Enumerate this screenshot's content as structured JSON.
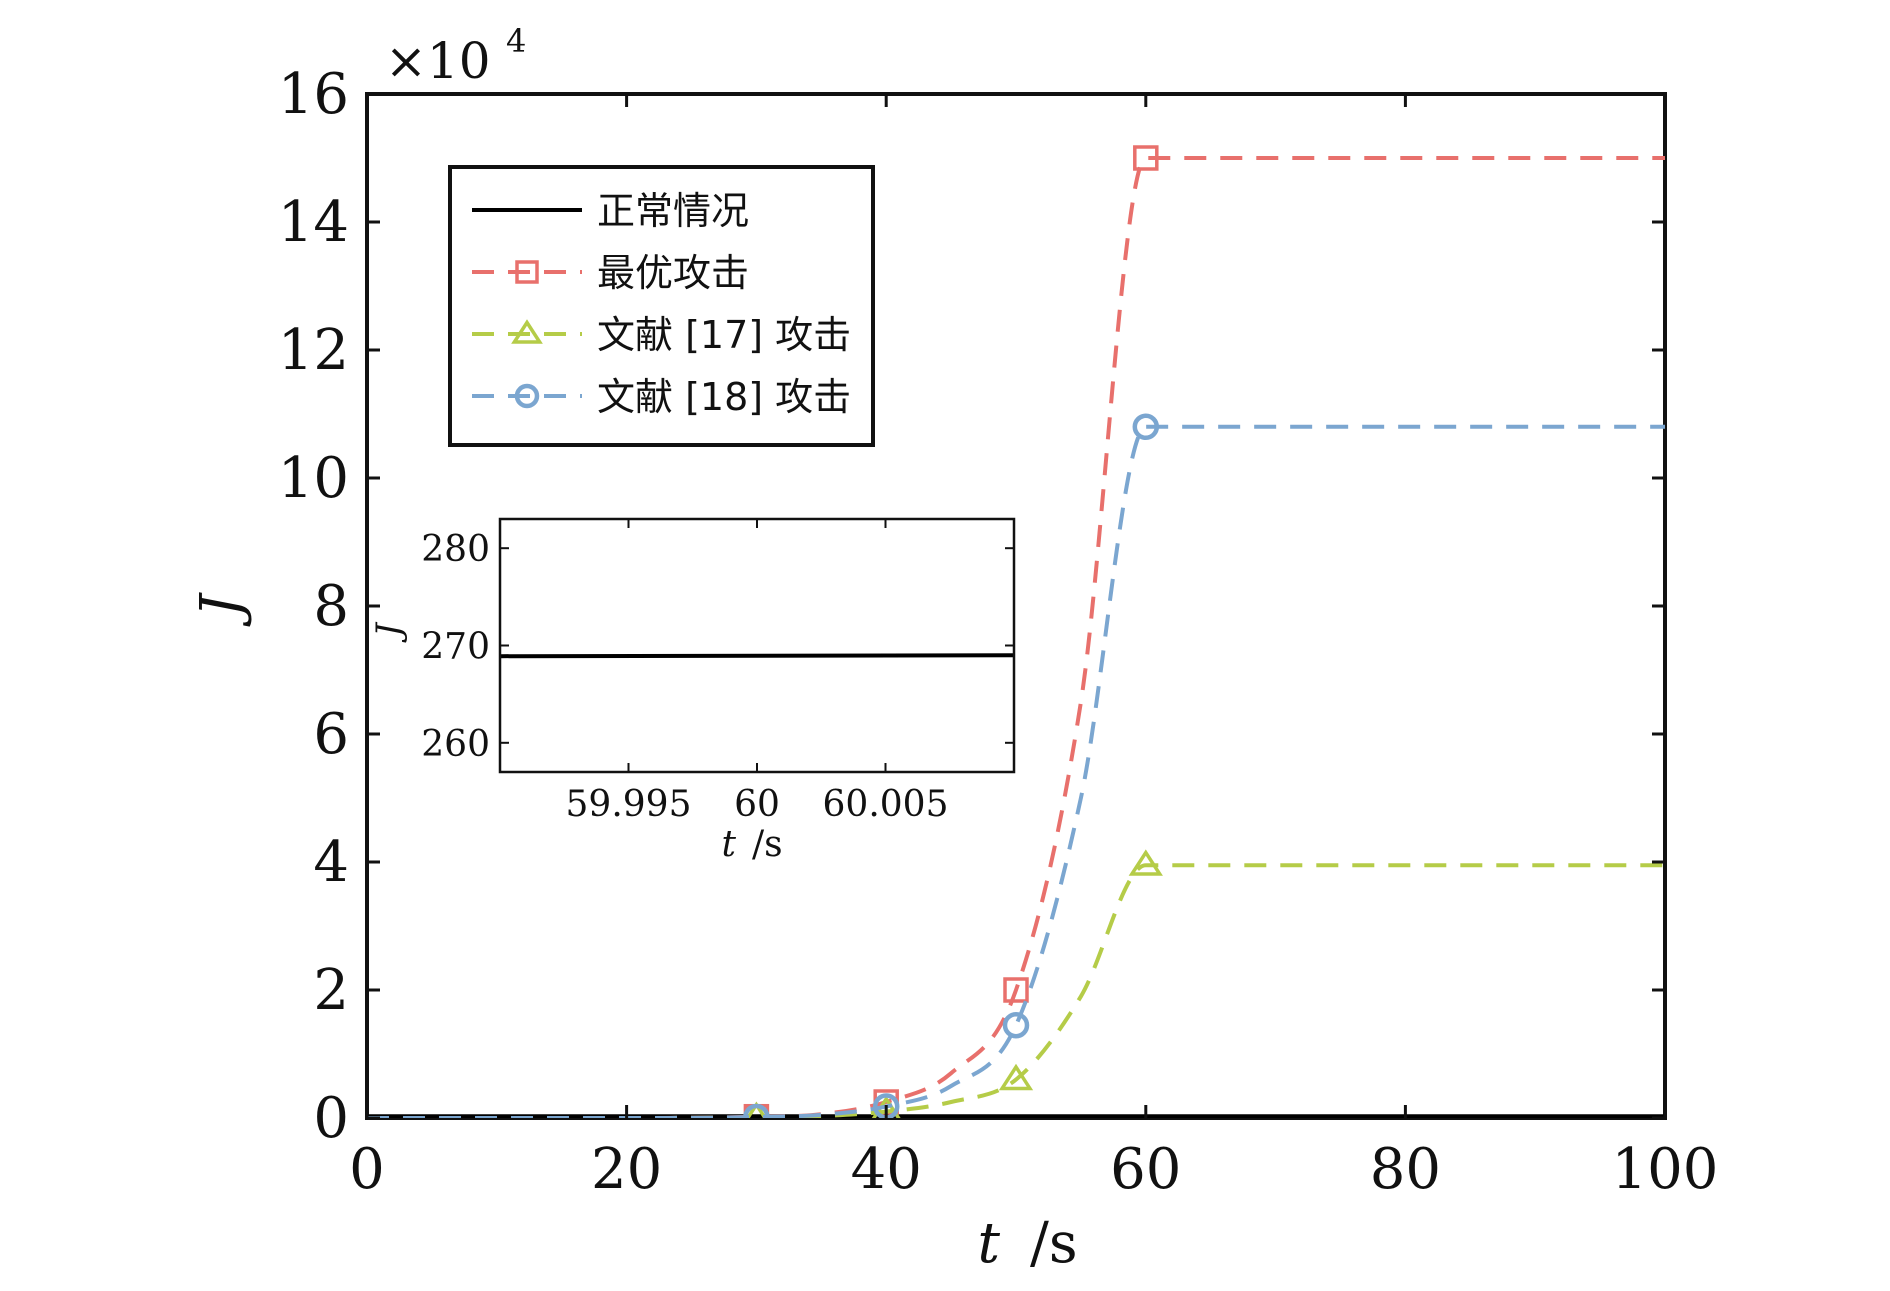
{
  "chart_data": [
    {
      "type": "line",
      "x_label": "t",
      "x_unit": "/s",
      "y_label": "J",
      "y_multiplier": "×10",
      "y_multiplier_exponent": "4",
      "xlim": [
        0,
        100
      ],
      "ylim": [
        0,
        16
      ],
      "x_ticks": [
        0,
        20,
        40,
        60,
        80,
        100
      ],
      "y_ticks": [
        0,
        2,
        4,
        6,
        8,
        10,
        12,
        14,
        16
      ],
      "grid": false,
      "legend_position": "top-left",
      "series": [
        {
          "name": "正常情况",
          "color": "#000000",
          "dash": "solid",
          "marker": "none",
          "x": [
            0,
            100
          ],
          "y": [
            0.0269,
            0.0269
          ]
        },
        {
          "name": "最优攻击",
          "color": "#e8706c",
          "dash": "dashed",
          "marker": "square",
          "x": [
            0,
            10,
            20,
            30,
            35,
            40,
            45,
            50,
            55,
            60,
            70,
            80,
            90,
            100
          ],
          "y": [
            0,
            0,
            0,
            0.02,
            0.06,
            0.25,
            0.7,
            2.0,
            6.5,
            15.0,
            15.0,
            15.0,
            15.0,
            15.0
          ],
          "marker_x": [
            30,
            40,
            50,
            60
          ],
          "marker_y": [
            0.02,
            0.25,
            2.0,
            15.0
          ]
        },
        {
          "name": "文献 [17] 攻击",
          "color": "#b5cc48",
          "dash": "dashed",
          "marker": "triangle",
          "x": [
            0,
            10,
            20,
            30,
            35,
            40,
            45,
            50,
            55,
            60,
            70,
            80,
            90,
            100
          ],
          "y": [
            0,
            0,
            0,
            0.01,
            0.03,
            0.1,
            0.25,
            0.6,
            1.9,
            3.95,
            3.95,
            3.95,
            3.95,
            3.95
          ],
          "marker_x": [
            30,
            40,
            50,
            60
          ],
          "marker_y": [
            0.01,
            0.1,
            0.6,
            3.95
          ]
        },
        {
          "name": "文献 [18] 攻击",
          "color": "#7ba6d0",
          "dash": "dashed",
          "marker": "circle",
          "x": [
            0,
            10,
            20,
            30,
            35,
            40,
            45,
            50,
            55,
            60,
            70,
            80,
            90,
            100
          ],
          "y": [
            0,
            0,
            0,
            0.015,
            0.05,
            0.18,
            0.5,
            1.45,
            5.0,
            10.8,
            10.8,
            10.8,
            10.8,
            10.8
          ],
          "marker_x": [
            30,
            40,
            50,
            60
          ],
          "marker_y": [
            0.015,
            0.18,
            1.45,
            10.8
          ]
        }
      ]
    },
    {
      "type": "line",
      "x_label": "t",
      "x_unit": "/s",
      "y_label": "J",
      "xlim": [
        59.99,
        60.01
      ],
      "ylim": [
        257,
        283
      ],
      "x_ticks": [
        59.995,
        60,
        60.005
      ],
      "x_tick_labels": [
        "59.995",
        "60",
        "60.005"
      ],
      "y_ticks": [
        260,
        270,
        280
      ],
      "series": [
        {
          "color": "#000000",
          "dash": "solid",
          "x": [
            59.99,
            60.01
          ],
          "y": [
            268.9,
            269.0
          ]
        }
      ]
    }
  ]
}
